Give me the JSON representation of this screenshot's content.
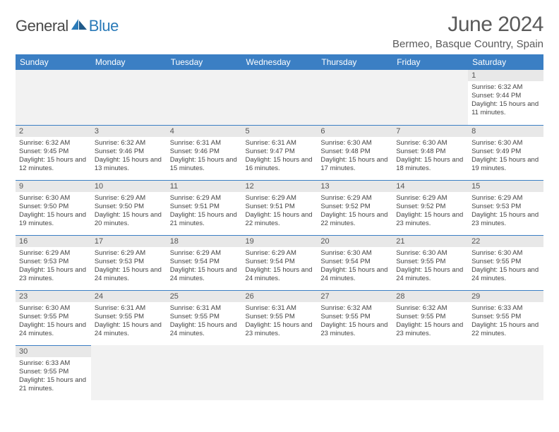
{
  "logo": {
    "part1": "General",
    "part2": "Blue"
  },
  "title": "June 2024",
  "location": "Bermeo, Basque Country, Spain",
  "colors": {
    "header_bg": "#3b7fc4",
    "header_fg": "#ffffff",
    "daynum_bg": "#e8e8e8",
    "row_border": "#3b7fc4",
    "text": "#444444",
    "title_color": "#5a5a5a",
    "logo_gray": "#4a4a4a",
    "logo_blue": "#2a7ab8"
  },
  "weekdays": [
    "Sunday",
    "Monday",
    "Tuesday",
    "Wednesday",
    "Thursday",
    "Friday",
    "Saturday"
  ],
  "weeks": [
    [
      null,
      null,
      null,
      null,
      null,
      null,
      {
        "n": "1",
        "sr": "6:32 AM",
        "ss": "9:44 PM",
        "dl": "15 hours and 11 minutes."
      }
    ],
    [
      {
        "n": "2",
        "sr": "6:32 AM",
        "ss": "9:45 PM",
        "dl": "15 hours and 12 minutes."
      },
      {
        "n": "3",
        "sr": "6:32 AM",
        "ss": "9:46 PM",
        "dl": "15 hours and 13 minutes."
      },
      {
        "n": "4",
        "sr": "6:31 AM",
        "ss": "9:46 PM",
        "dl": "15 hours and 15 minutes."
      },
      {
        "n": "5",
        "sr": "6:31 AM",
        "ss": "9:47 PM",
        "dl": "15 hours and 16 minutes."
      },
      {
        "n": "6",
        "sr": "6:30 AM",
        "ss": "9:48 PM",
        "dl": "15 hours and 17 minutes."
      },
      {
        "n": "7",
        "sr": "6:30 AM",
        "ss": "9:48 PM",
        "dl": "15 hours and 18 minutes."
      },
      {
        "n": "8",
        "sr": "6:30 AM",
        "ss": "9:49 PM",
        "dl": "15 hours and 19 minutes."
      }
    ],
    [
      {
        "n": "9",
        "sr": "6:30 AM",
        "ss": "9:50 PM",
        "dl": "15 hours and 19 minutes."
      },
      {
        "n": "10",
        "sr": "6:29 AM",
        "ss": "9:50 PM",
        "dl": "15 hours and 20 minutes."
      },
      {
        "n": "11",
        "sr": "6:29 AM",
        "ss": "9:51 PM",
        "dl": "15 hours and 21 minutes."
      },
      {
        "n": "12",
        "sr": "6:29 AM",
        "ss": "9:51 PM",
        "dl": "15 hours and 22 minutes."
      },
      {
        "n": "13",
        "sr": "6:29 AM",
        "ss": "9:52 PM",
        "dl": "15 hours and 22 minutes."
      },
      {
        "n": "14",
        "sr": "6:29 AM",
        "ss": "9:52 PM",
        "dl": "15 hours and 23 minutes."
      },
      {
        "n": "15",
        "sr": "6:29 AM",
        "ss": "9:53 PM",
        "dl": "15 hours and 23 minutes."
      }
    ],
    [
      {
        "n": "16",
        "sr": "6:29 AM",
        "ss": "9:53 PM",
        "dl": "15 hours and 23 minutes."
      },
      {
        "n": "17",
        "sr": "6:29 AM",
        "ss": "9:53 PM",
        "dl": "15 hours and 24 minutes."
      },
      {
        "n": "18",
        "sr": "6:29 AM",
        "ss": "9:54 PM",
        "dl": "15 hours and 24 minutes."
      },
      {
        "n": "19",
        "sr": "6:29 AM",
        "ss": "9:54 PM",
        "dl": "15 hours and 24 minutes."
      },
      {
        "n": "20",
        "sr": "6:30 AM",
        "ss": "9:54 PM",
        "dl": "15 hours and 24 minutes."
      },
      {
        "n": "21",
        "sr": "6:30 AM",
        "ss": "9:55 PM",
        "dl": "15 hours and 24 minutes."
      },
      {
        "n": "22",
        "sr": "6:30 AM",
        "ss": "9:55 PM",
        "dl": "15 hours and 24 minutes."
      }
    ],
    [
      {
        "n": "23",
        "sr": "6:30 AM",
        "ss": "9:55 PM",
        "dl": "15 hours and 24 minutes."
      },
      {
        "n": "24",
        "sr": "6:31 AM",
        "ss": "9:55 PM",
        "dl": "15 hours and 24 minutes."
      },
      {
        "n": "25",
        "sr": "6:31 AM",
        "ss": "9:55 PM",
        "dl": "15 hours and 24 minutes."
      },
      {
        "n": "26",
        "sr": "6:31 AM",
        "ss": "9:55 PM",
        "dl": "15 hours and 23 minutes."
      },
      {
        "n": "27",
        "sr": "6:32 AM",
        "ss": "9:55 PM",
        "dl": "15 hours and 23 minutes."
      },
      {
        "n": "28",
        "sr": "6:32 AM",
        "ss": "9:55 PM",
        "dl": "15 hours and 23 minutes."
      },
      {
        "n": "29",
        "sr": "6:33 AM",
        "ss": "9:55 PM",
        "dl": "15 hours and 22 minutes."
      }
    ],
    [
      {
        "n": "30",
        "sr": "6:33 AM",
        "ss": "9:55 PM",
        "dl": "15 hours and 21 minutes."
      },
      null,
      null,
      null,
      null,
      null,
      null
    ]
  ],
  "labels": {
    "sunrise": "Sunrise:",
    "sunset": "Sunset:",
    "daylight": "Daylight:"
  }
}
